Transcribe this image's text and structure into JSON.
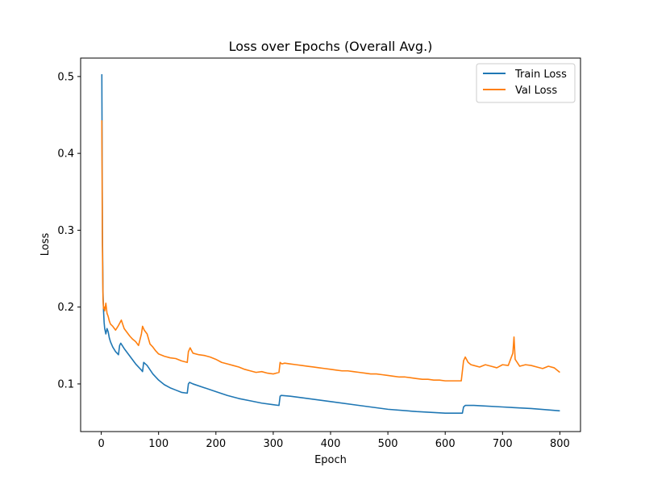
{
  "chart_data": {
    "type": "line",
    "title": "Loss over Epochs (Overall Avg.)",
    "xlabel": "Epoch",
    "ylabel": "Loss",
    "xlim": [
      -36,
      836
    ],
    "ylim": [
      0.038,
      0.524
    ],
    "xticks": [
      0,
      100,
      200,
      300,
      400,
      500,
      600,
      700,
      800
    ],
    "yticks": [
      0.1,
      0.2,
      0.3,
      0.4,
      0.5
    ],
    "grid": false,
    "legend_position": "top-right",
    "series": [
      {
        "name": "Train Loss",
        "color": "#1f77b4",
        "x": [
          1,
          2,
          3,
          4,
          5,
          6,
          8,
          10,
          12,
          14,
          16,
          20,
          25,
          30,
          32,
          34,
          40,
          50,
          60,
          70,
          72,
          74,
          80,
          90,
          100,
          110,
          120,
          130,
          140,
          150,
          152,
          154,
          160,
          180,
          200,
          220,
          240,
          260,
          280,
          300,
          310,
          312,
          314,
          330,
          350,
          400,
          450,
          500,
          550,
          600,
          630,
          632,
          635,
          650,
          700,
          750,
          800
        ],
        "y": [
          0.503,
          0.3,
          0.22,
          0.195,
          0.18,
          0.172,
          0.165,
          0.172,
          0.168,
          0.16,
          0.155,
          0.148,
          0.142,
          0.138,
          0.15,
          0.153,
          0.146,
          0.136,
          0.126,
          0.118,
          0.116,
          0.128,
          0.124,
          0.113,
          0.105,
          0.099,
          0.095,
          0.092,
          0.089,
          0.088,
          0.1,
          0.102,
          0.1,
          0.095,
          0.09,
          0.085,
          0.081,
          0.078,
          0.075,
          0.073,
          0.072,
          0.084,
          0.085,
          0.084,
          0.082,
          0.077,
          0.072,
          0.067,
          0.064,
          0.062,
          0.062,
          0.07,
          0.072,
          0.072,
          0.07,
          0.068,
          0.065
        ]
      },
      {
        "name": "Val Loss",
        "color": "#ff7f0e",
        "x": [
          1,
          2,
          3,
          4,
          5,
          6,
          8,
          10,
          12,
          14,
          16,
          20,
          25,
          30,
          35,
          40,
          45,
          50,
          55,
          60,
          65,
          70,
          72,
          75,
          80,
          85,
          90,
          95,
          100,
          110,
          120,
          130,
          140,
          150,
          152,
          155,
          160,
          170,
          180,
          190,
          200,
          210,
          220,
          230,
          240,
          250,
          260,
          270,
          280,
          290,
          300,
          305,
          310,
          312,
          315,
          320,
          330,
          340,
          350,
          360,
          370,
          380,
          390,
          400,
          410,
          420,
          430,
          440,
          450,
          460,
          470,
          480,
          490,
          500,
          510,
          520,
          530,
          540,
          550,
          560,
          570,
          580,
          590,
          600,
          610,
          620,
          628,
          632,
          635,
          640,
          645,
          650,
          660,
          670,
          680,
          690,
          700,
          710,
          718,
          720,
          722,
          730,
          740,
          750,
          760,
          770,
          780,
          790,
          800
        ],
        "y": [
          0.443,
          0.28,
          0.21,
          0.198,
          0.2,
          0.195,
          0.205,
          0.192,
          0.188,
          0.182,
          0.178,
          0.175,
          0.17,
          0.176,
          0.183,
          0.172,
          0.167,
          0.162,
          0.158,
          0.155,
          0.15,
          0.165,
          0.175,
          0.17,
          0.165,
          0.152,
          0.148,
          0.143,
          0.139,
          0.136,
          0.134,
          0.133,
          0.13,
          0.128,
          0.142,
          0.147,
          0.14,
          0.138,
          0.137,
          0.135,
          0.132,
          0.128,
          0.126,
          0.124,
          0.122,
          0.119,
          0.117,
          0.115,
          0.116,
          0.114,
          0.113,
          0.114,
          0.115,
          0.128,
          0.126,
          0.127,
          0.126,
          0.125,
          0.124,
          0.123,
          0.122,
          0.121,
          0.12,
          0.119,
          0.118,
          0.117,
          0.117,
          0.116,
          0.115,
          0.114,
          0.113,
          0.113,
          0.112,
          0.111,
          0.11,
          0.109,
          0.109,
          0.108,
          0.107,
          0.106,
          0.106,
          0.105,
          0.105,
          0.104,
          0.104,
          0.104,
          0.104,
          0.13,
          0.135,
          0.128,
          0.125,
          0.124,
          0.122,
          0.125,
          0.123,
          0.121,
          0.125,
          0.124,
          0.14,
          0.161,
          0.132,
          0.123,
          0.125,
          0.124,
          0.122,
          0.12,
          0.123,
          0.121,
          0.115
        ]
      }
    ]
  }
}
